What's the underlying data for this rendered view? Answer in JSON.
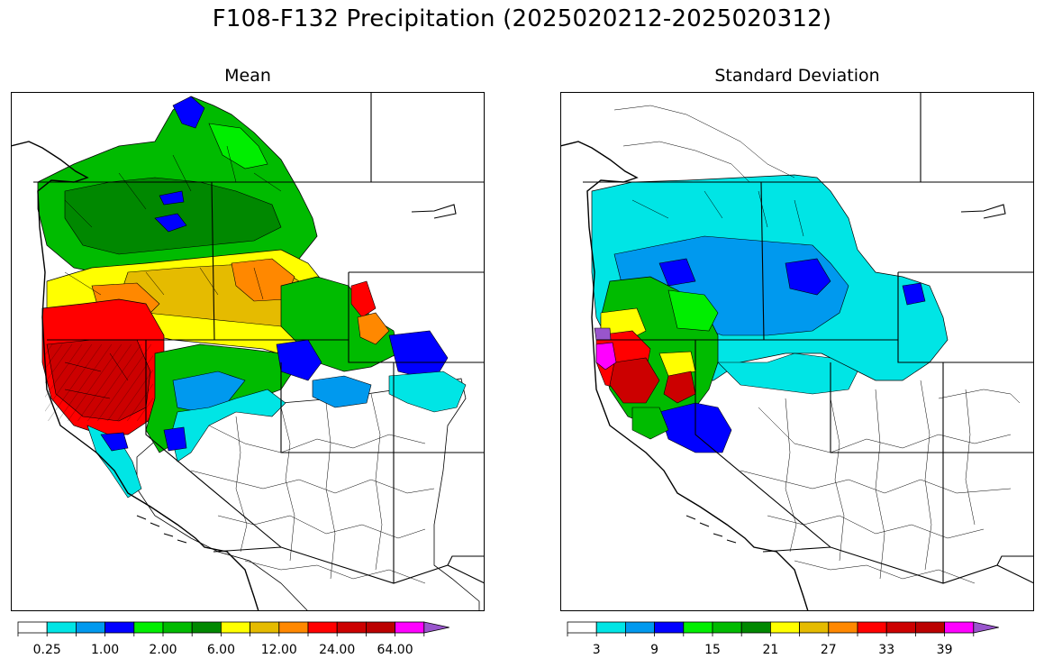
{
  "figure": {
    "title": "F108-F132 Precipitation (2025020212-2025020312)"
  },
  "panels": [
    {
      "title": "Mean",
      "colorbar": {
        "colors": [
          "#ffffff",
          "#00e5e5",
          "#0099ee",
          "#0000ff",
          "#00ee00",
          "#00bb00",
          "#008800",
          "#ffff00",
          "#e5bb00",
          "#ff8800",
          "#ff0000",
          "#cc0000",
          "#bb0000",
          "#ff00ff",
          "#9955cc"
        ],
        "tick_labels": [
          "0.25",
          "1.00",
          "2.00",
          "6.00",
          "12.00",
          "24.00",
          "64.00"
        ],
        "tick_after_box": [
          1,
          3,
          5,
          7,
          9,
          11,
          13
        ]
      }
    },
    {
      "title": "Standard Deviation",
      "colorbar": {
        "colors": [
          "#ffffff",
          "#00e5e5",
          "#0099ee",
          "#0000ff",
          "#00ee00",
          "#00bb00",
          "#008800",
          "#ffff00",
          "#e5bb00",
          "#ff8800",
          "#ff0000",
          "#cc0000",
          "#bb0000",
          "#ff00ff",
          "#9955cc"
        ],
        "tick_labels": [
          "3",
          "9",
          "15",
          "21",
          "27",
          "33",
          "39"
        ],
        "tick_after_box": [
          1,
          3,
          5,
          7,
          9,
          11,
          13
        ]
      }
    }
  ]
}
